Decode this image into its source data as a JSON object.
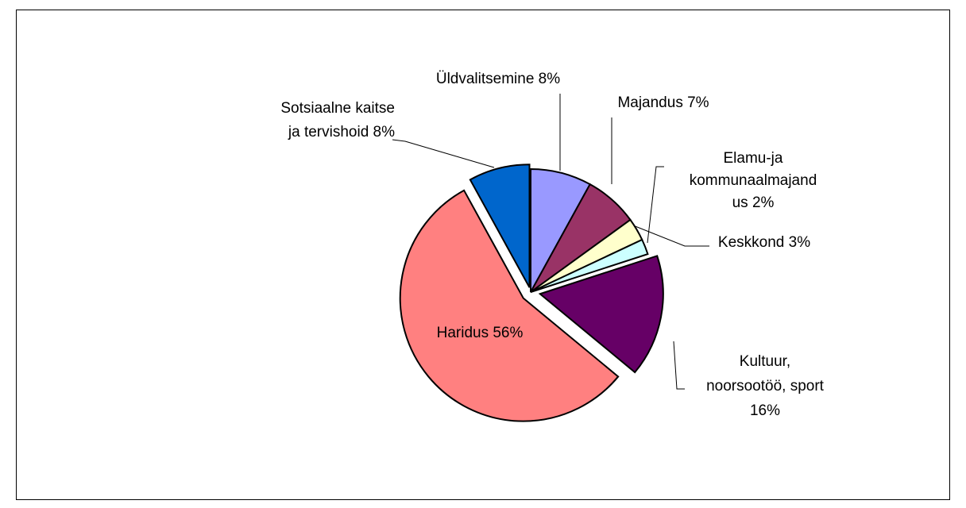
{
  "chart_data": {
    "type": "pie",
    "values": [
      8,
      7,
      3,
      2,
      16,
      56,
      8
    ],
    "value_labels": [
      [
        "Üldvalitsemine 8%"
      ],
      [
        "Majandus 7%"
      ],
      [
        "Keskkond 3%"
      ],
      [
        "Elamu-ja",
        "kommunaalmajand",
        "us 2%"
      ],
      [
        "Kultuur,",
        "noorsootöö, sport",
        "16%"
      ],
      [
        "Haridus 56%"
      ],
      [
        "Sotsiaalne kaitse",
        "ja tervishoid 8%"
      ]
    ],
    "colors": [
      "#9999ff",
      "#993366",
      "#ffffcc",
      "#ccffff",
      "#660066",
      "#ff8080",
      "#0066cc"
    ]
  }
}
